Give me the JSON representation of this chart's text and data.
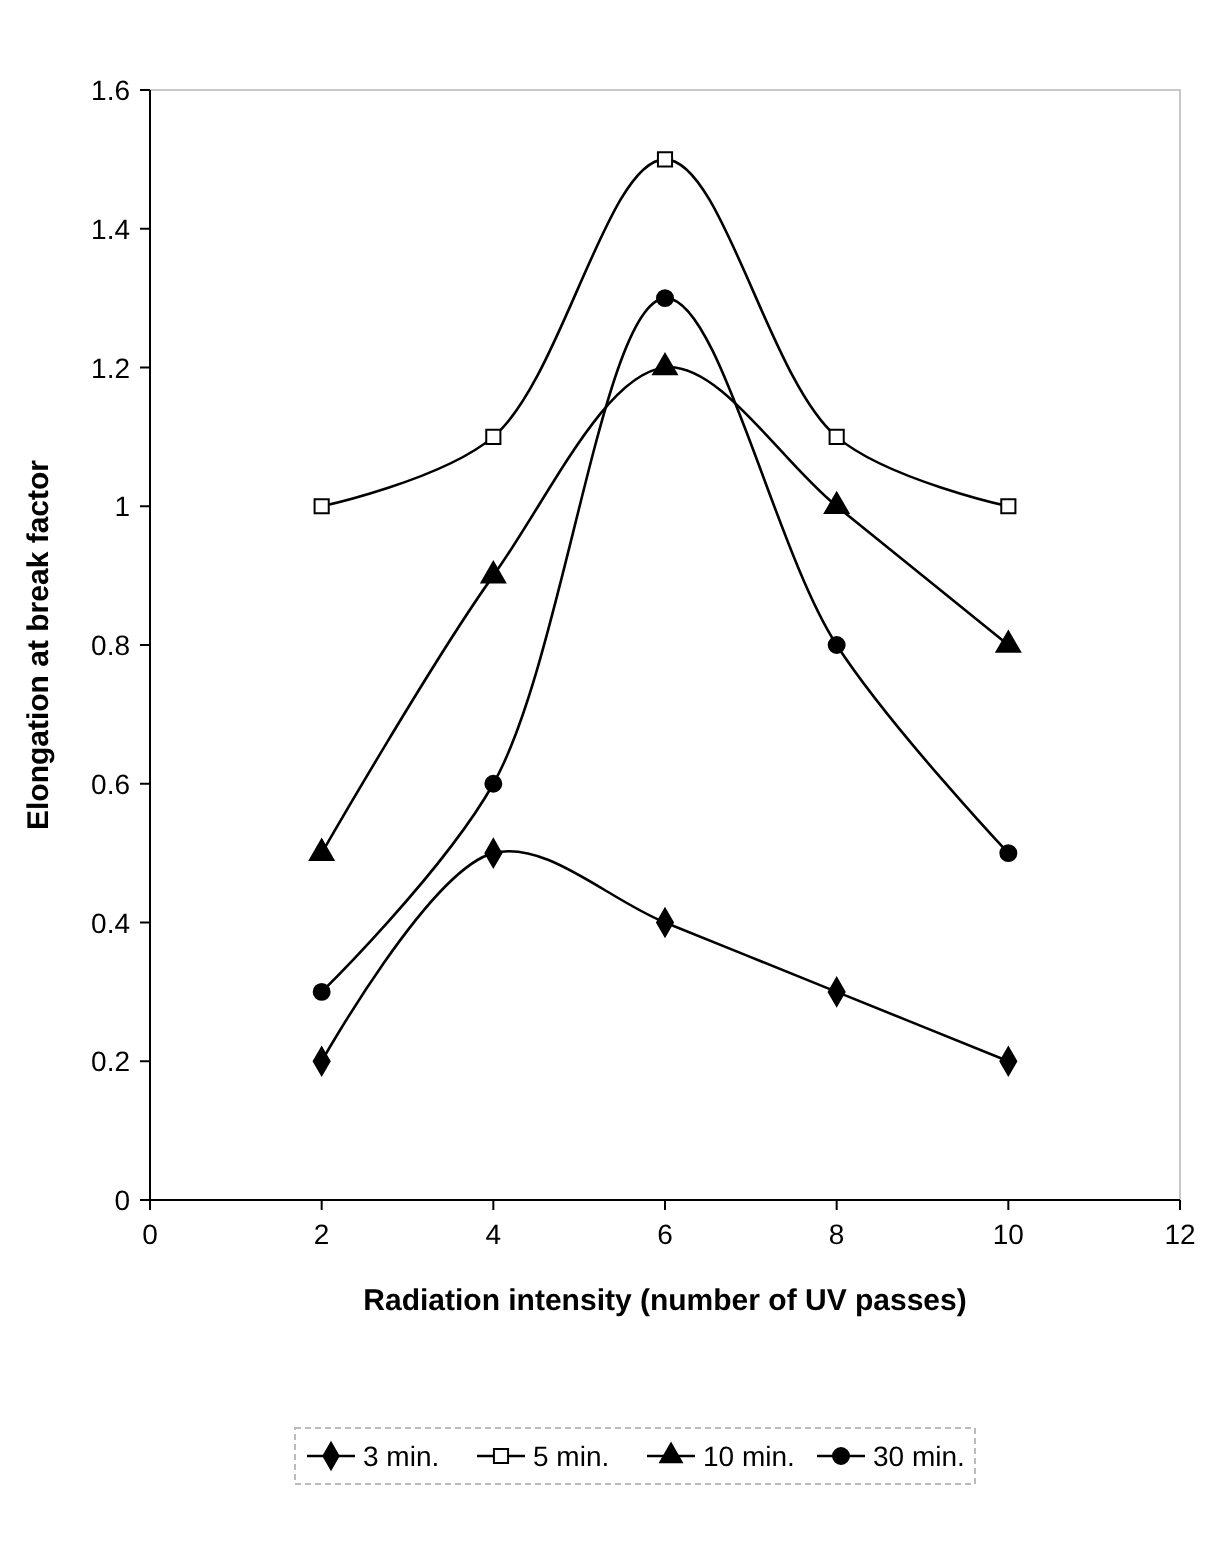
{
  "chart_data": {
    "type": "line",
    "xlabel": "Radiation intensity (number of UV passes)",
    "ylabel": "Elongation at break factor",
    "x": [
      2,
      4,
      6,
      8,
      10
    ],
    "xlim": [
      0,
      12
    ],
    "xticks": [
      0,
      2,
      4,
      6,
      8,
      10,
      12
    ],
    "ylim": [
      0,
      1.6
    ],
    "yticks": [
      0,
      0.2,
      0.4,
      0.6,
      0.8,
      1,
      1.2,
      1.4,
      1.6
    ],
    "grid": false,
    "legend": "bottom",
    "line_style": "solid",
    "series": [
      {
        "name": "3 min.",
        "color": "#000000",
        "marker": "diamond",
        "values": [
          0.2,
          0.5,
          0.4,
          0.3,
          0.2
        ]
      },
      {
        "name": "5 min.",
        "color": "#000000",
        "marker": "square",
        "values": [
          1,
          1.1,
          1.5,
          1.1,
          1
        ]
      },
      {
        "name": "10 min.",
        "color": "#000000",
        "marker": "triangle",
        "values": [
          0.5,
          0.9,
          1.2,
          1,
          0.8
        ]
      },
      {
        "name": "30 min.",
        "color": "#000000",
        "marker": "circle",
        "values": [
          0.3,
          0.6,
          1.3,
          0.8,
          0.5
        ]
      }
    ]
  }
}
